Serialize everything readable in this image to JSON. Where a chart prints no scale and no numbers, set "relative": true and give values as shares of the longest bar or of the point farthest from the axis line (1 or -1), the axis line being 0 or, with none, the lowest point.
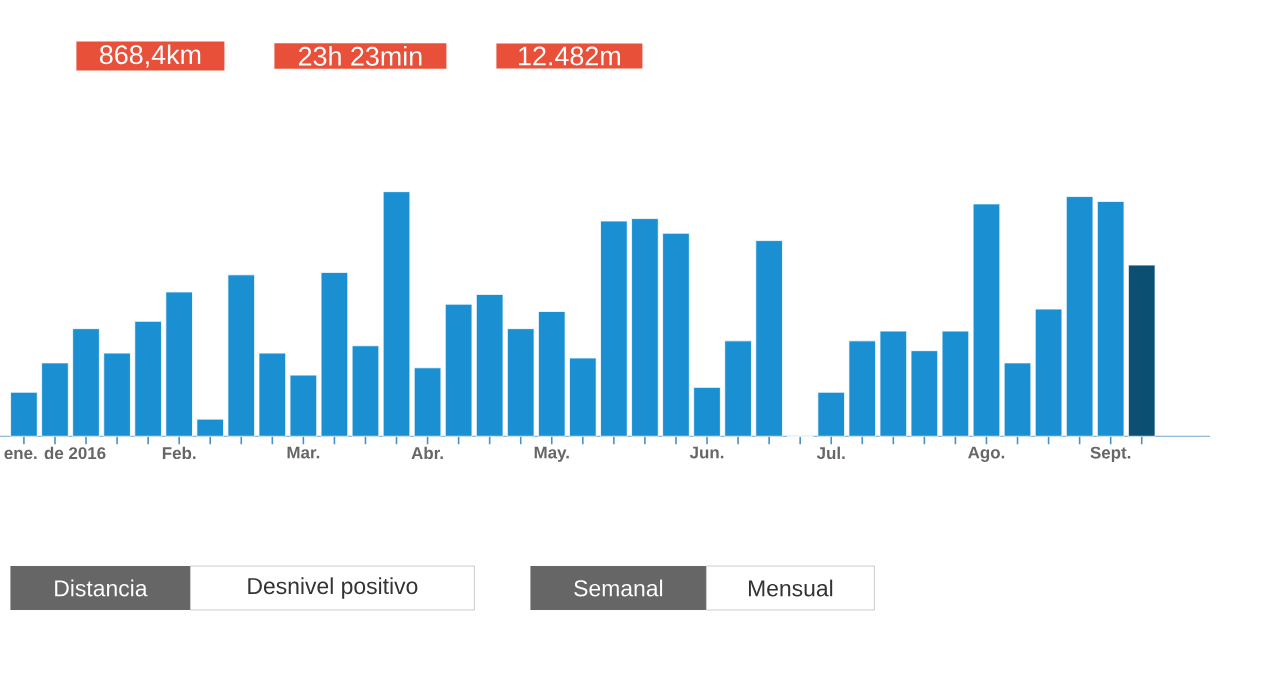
{
  "chart_data": {
    "type": "bar",
    "relative": true,
    "categories": [
      null,
      "ene. de 2016",
      null,
      null,
      null,
      "Feb.",
      null,
      null,
      null,
      "Mar.",
      null,
      null,
      null,
      "Abr.",
      null,
      null,
      null,
      "May.",
      null,
      null,
      null,
      null,
      "Jun.",
      null,
      null,
      null,
      "Jul.",
      null,
      null,
      null,
      null,
      "Ago.",
      null,
      null,
      null,
      "Sept.",
      null
    ],
    "values": [
      0.18,
      0.3,
      0.44,
      0.34,
      0.47,
      0.59,
      0.07,
      0.66,
      0.34,
      0.25,
      0.67,
      0.37,
      1,
      0.28,
      0.54,
      0.58,
      0.44,
      0.51,
      0.32,
      0.88,
      0.89,
      0.83,
      0.2,
      0.39,
      0.8,
      0,
      0.18,
      0.39,
      0.43,
      0.35,
      0.43,
      0.95,
      0.3,
      0.52,
      0.98,
      0.96,
      0.7
    ],
    "colors": [
      "#1a90d2",
      "#1a90d2",
      "#1a90d2",
      "#1a90d2",
      "#1a90d2",
      "#1a90d2",
      "#1a90d2",
      "#1a90d2",
      "#1a90d2",
      "#1a90d2",
      "#1a90d2",
      "#1a90d2",
      "#1a90d2",
      "#1a90d2",
      "#1a90d2",
      "#1a90d2",
      "#1a90d2",
      "#1a90d2",
      "#1a90d2",
      "#1a90d2",
      "#1a90d2",
      "#1a90d2",
      "#1a90d2",
      "#1a90d2",
      "#1a90d2",
      "#1a90d2",
      "#1a90d2",
      "#1a90d2",
      "#1a90d2",
      "#1a90d2",
      "#1a90d2",
      "#1a90d2",
      "#1a90d2",
      "#1a90d2",
      "#1a90d2",
      "#1a90d2",
      "#0b4f72"
    ],
    "annotations": [
      "868,4km",
      "23h 23min",
      "12.482m",
      "Distancia",
      "Desnivel positivo",
      "Semanal",
      "Mensual"
    ]
  }
}
